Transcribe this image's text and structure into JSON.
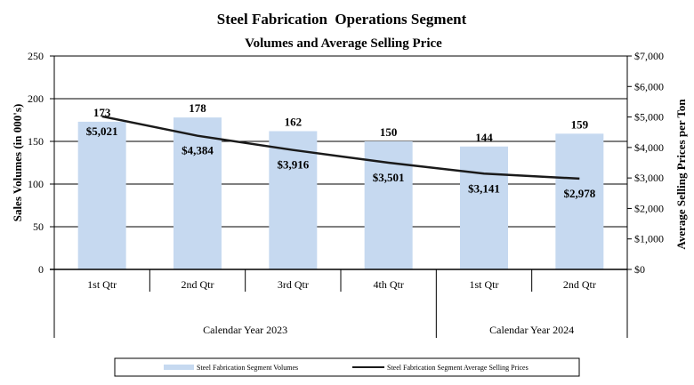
{
  "chart_data": {
    "type": "bar",
    "title": "Steel Fabrication  Operations Segment",
    "subtitle": "Volumes and Average Selling Price",
    "categories": [
      "1st Qtr",
      "2nd Qtr",
      "3rd Qtr",
      "4th Qtr",
      "1st Qtr",
      "2nd Qtr"
    ],
    "groups": [
      {
        "label": "Calendar Year 2023",
        "count": 4
      },
      {
        "label": "Calendar Year 2024",
        "count": 2
      }
    ],
    "series": [
      {
        "name": "Steel Fabrication Segment Volumes",
        "type": "bar",
        "axis": "left",
        "color": "#c6d9f0",
        "values": [
          173,
          178,
          162,
          150,
          144,
          159
        ],
        "labels": [
          "173",
          "178",
          "162",
          "150",
          "144",
          "159"
        ]
      },
      {
        "name": "Steel Fabrication Segment Average Selling Prices",
        "type": "line",
        "axis": "right",
        "color": "#1a1a1a",
        "values": [
          5021,
          4384,
          3916,
          3501,
          3141,
          2978
        ],
        "labels": [
          "$5,021",
          "$4,384",
          "$3,916",
          "$3,501",
          "$3,141",
          "$2,978"
        ]
      }
    ],
    "ylabel": "Sales Volumes (in 000's)",
    "ylim": [
      0,
      250
    ],
    "yticks": [
      0,
      50,
      100,
      150,
      200,
      250
    ],
    "yticklabels": [
      "0",
      "50",
      "100",
      "150",
      "200",
      "250"
    ],
    "y2label": "Average Selling Prices per Ton",
    "y2lim": [
      0,
      7000
    ],
    "y2ticks": [
      0,
      1000,
      2000,
      3000,
      4000,
      5000,
      6000,
      7000
    ],
    "y2ticklabels": [
      "$0",
      "$1,000",
      "$2,000",
      "$3,000",
      "$4,000",
      "$5,000",
      "$6,000",
      "$7,000"
    ],
    "grid": true,
    "legend_position": "bottom"
  }
}
